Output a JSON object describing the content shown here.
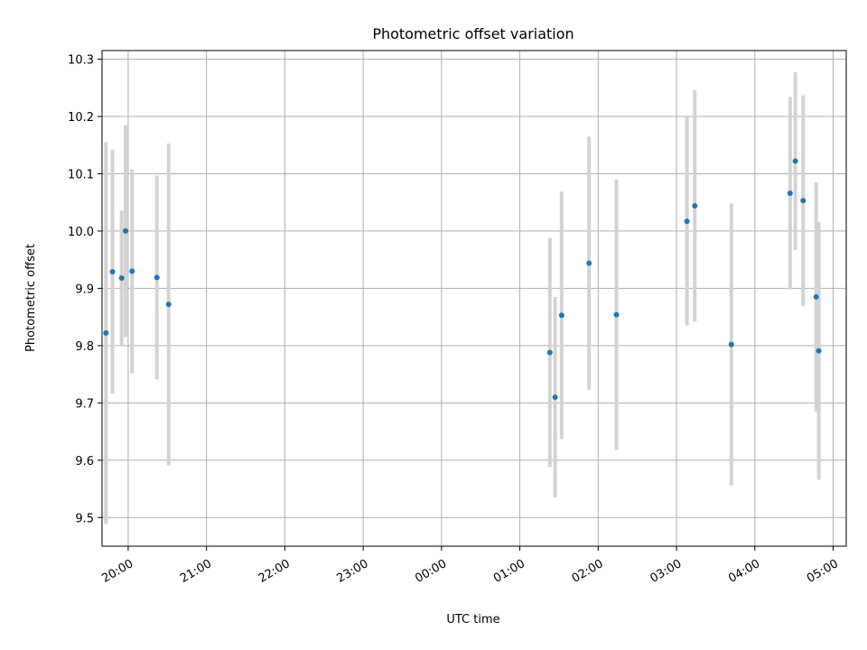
{
  "chart_data": {
    "type": "scatter",
    "title": "Photometric offset variation",
    "xlabel": "UTC time",
    "ylabel": "Photometric offset",
    "x_axis": "time",
    "x_range": [
      "19:40",
      "05:10"
    ],
    "x_ticks": [
      "20:00",
      "21:00",
      "22:00",
      "23:00",
      "00:00",
      "01:00",
      "02:00",
      "03:00",
      "04:00",
      "05:00"
    ],
    "ylim": [
      9.45,
      10.315
    ],
    "y_ticks": [
      9.5,
      9.6,
      9.7,
      9.8,
      9.9,
      10.0,
      10.1,
      10.2,
      10.3
    ],
    "grid": true,
    "colors": {
      "point": "#1f77b4",
      "errorbar": "#d3d3d3",
      "grid": "#b0b0b0"
    },
    "points": [
      {
        "t": "19:43",
        "y": 9.822,
        "err": 0.333
      },
      {
        "t": "19:48",
        "y": 9.929,
        "err": 0.213
      },
      {
        "t": "19:55",
        "y": 9.918,
        "err": 0.118
      },
      {
        "t": "19:58",
        "y": 10.0,
        "err": 0.185
      },
      {
        "t": "20:03",
        "y": 9.93,
        "err": 0.178
      },
      {
        "t": "20:22",
        "y": 9.919,
        "err": 0.178
      },
      {
        "t": "20:31",
        "y": 9.872,
        "err": 0.281
      },
      {
        "t": "01:23",
        "y": 9.788,
        "err": 0.2
      },
      {
        "t": "01:27",
        "y": 9.71,
        "err": 0.175
      },
      {
        "t": "01:32",
        "y": 9.853,
        "err": 0.216
      },
      {
        "t": "01:53",
        "y": 9.944,
        "err": 0.221
      },
      {
        "t": "02:14",
        "y": 9.854,
        "err": 0.236
      },
      {
        "t": "03:08",
        "y": 10.017,
        "err": 0.182
      },
      {
        "t": "03:14",
        "y": 10.044,
        "err": 0.202
      },
      {
        "t": "03:42",
        "y": 9.802,
        "err": 0.246
      },
      {
        "t": "04:27",
        "y": 10.066,
        "err": 0.168
      },
      {
        "t": "04:31",
        "y": 10.122,
        "err": 0.155
      },
      {
        "t": "04:37",
        "y": 10.053,
        "err": 0.184
      },
      {
        "t": "04:47",
        "y": 9.885,
        "err": 0.2
      },
      {
        "t": "04:49",
        "y": 9.791,
        "err": 0.225
      }
    ]
  }
}
